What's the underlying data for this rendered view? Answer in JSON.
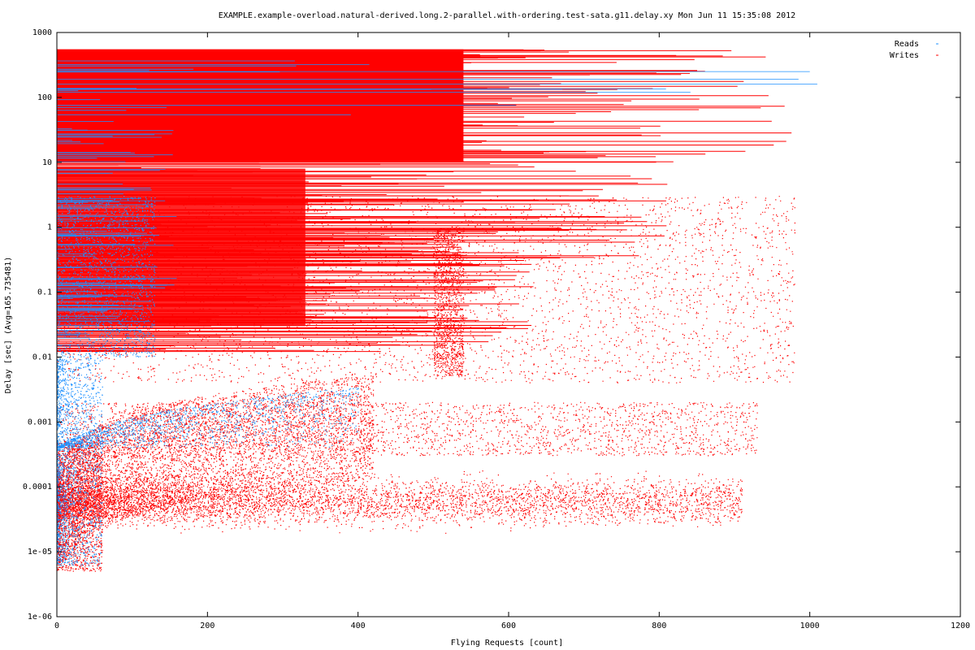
{
  "chart_data": {
    "type": "scatter",
    "title": "EXAMPLE.example-overload.natural-derived.long.2-parallel.with-ordering.test-sata.g11.delay.xy Mon Jun 11 15:35:08 2012",
    "xlabel": "Flying Requests [count]",
    "ylabel": "Delay [sec]  (Avg=165.735481)",
    "x_scale": "linear",
    "y_scale": "log",
    "xlim": [
      0,
      1200
    ],
    "ylim": [
      1e-06,
      1000
    ],
    "x_ticks": [
      0,
      200,
      400,
      600,
      800,
      1000,
      1200
    ],
    "x_tick_labels": [
      "0",
      "200",
      "400",
      "600",
      "800",
      "1000",
      "1200"
    ],
    "y_ticks": [
      1e-06,
      1e-05,
      0.0001,
      0.001,
      0.01,
      0.1,
      1,
      10,
      100,
      1000
    ],
    "y_tick_labels": [
      "1e-06",
      "1e-05",
      "0.0001",
      "0.001",
      "0.01",
      "0.1",
      "1",
      "10",
      "100",
      "1000"
    ],
    "grid": false,
    "legend_position": "top-right",
    "series": [
      {
        "name": "Reads",
        "color": "#1e90ff",
        "marker": "dots",
        "description_regions": [
          {
            "x_range": [
              0,
              140
            ],
            "y_range": [
              0.01,
              500
            ]
          },
          {
            "x_range": [
              0,
              400
            ],
            "y_range": [
              0.0015,
              0.004
            ]
          },
          {
            "x_range": [
              0,
              30
            ],
            "y_range": [
              6e-06,
              0.01
            ]
          },
          {
            "x_range": [
              0,
              1010
            ],
            "y_range": [
              150,
              250
            ]
          }
        ]
      },
      {
        "name": "Writes",
        "color": "#ff0000",
        "marker": "dots",
        "dense_band_level": 6e-05,
        "dense_band_x_range": [
          0,
          910
        ],
        "saturated_region": {
          "x_range": [
            0,
            540
          ],
          "y_range": [
            10,
            550
          ]
        },
        "bulk_region": {
          "x_range": [
            0,
            520
          ],
          "y_range": [
            0.01,
            10
          ]
        },
        "max_x": 990,
        "max_y": 550
      }
    ]
  }
}
